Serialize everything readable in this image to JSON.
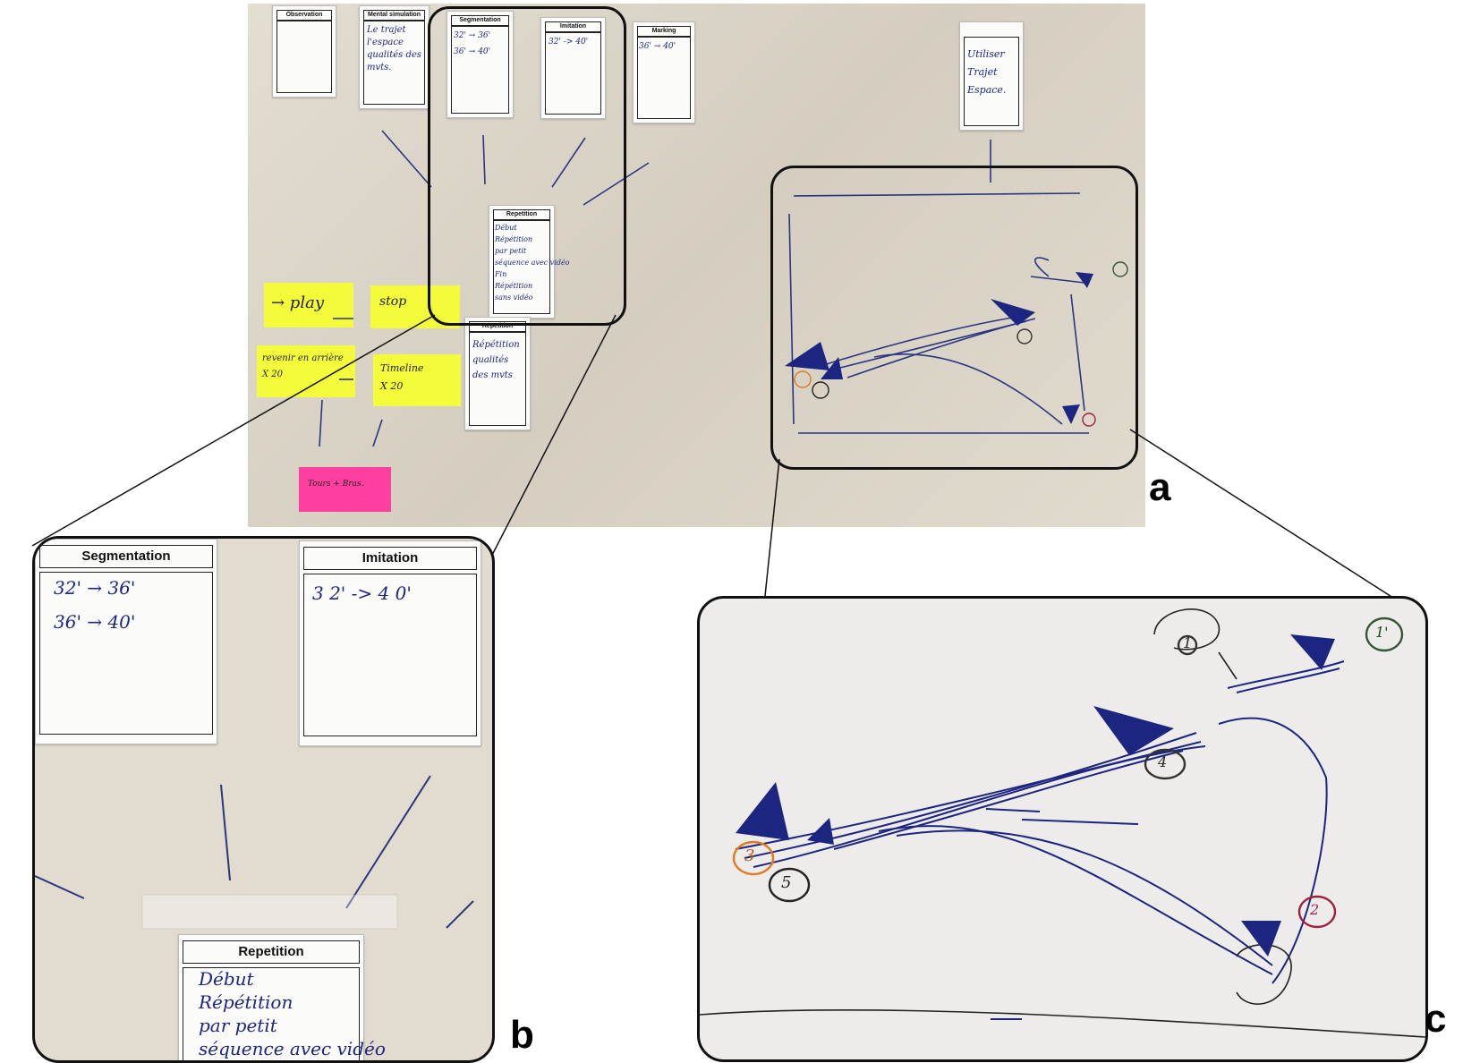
{
  "panel_labels": {
    "a": "a",
    "b": "b",
    "c": "c"
  },
  "cards": {
    "observation": {
      "title": "Observation"
    },
    "mental_simulation": {
      "title": "Mental simulation",
      "text": "Le trajet\nl'espace\nqualités des\nmvts."
    },
    "segmentation": {
      "title": "Segmentation",
      "line1": "32' → 36'",
      "line2": "36' → 40'"
    },
    "imitation": {
      "title": "Imitation",
      "line1": "32' -> 40'"
    },
    "marking": {
      "title": "Marking",
      "line1": "36' → 40'"
    },
    "repetition_1": {
      "title": "Repetition",
      "text": "Début\nRépétition\npar petit\nséquence avec vidéo\nFin\nRépétition\nsans vidéo"
    },
    "repetition_2": {
      "title": "Repetition",
      "text": "Répétition\nqualités\ndes mvts"
    },
    "right_card": {
      "text": "Utiliser\nTrajet\nEspace."
    }
  },
  "stickies": {
    "play": "→ play",
    "stop": "stop",
    "rewind": "revenir en arrière\nX 20",
    "timeline": "Timeline\nX 20",
    "pink": "Tours + Bras."
  },
  "inset_b": {
    "segmentation_title": "Segmentation",
    "segmentation_line1": "32' → 36'",
    "segmentation_line2": "36' → 40'",
    "imitation_title": "Imitation",
    "imitation_line1": "3 2' -> 4 0'",
    "repetition_title": "Repetition",
    "repetition_text": "Début\nRépétition\npar petit\nséquence avec vidéo"
  },
  "inset_c": {
    "markers": [
      "1",
      "1'",
      "2",
      "3",
      "4",
      "5"
    ]
  },
  "colors": {
    "ink_blue": "#1c2680",
    "sticky_yellow": "#f4fb3a",
    "sticky_pink": "#ff3fa0",
    "paper": "#ddd6c8"
  }
}
